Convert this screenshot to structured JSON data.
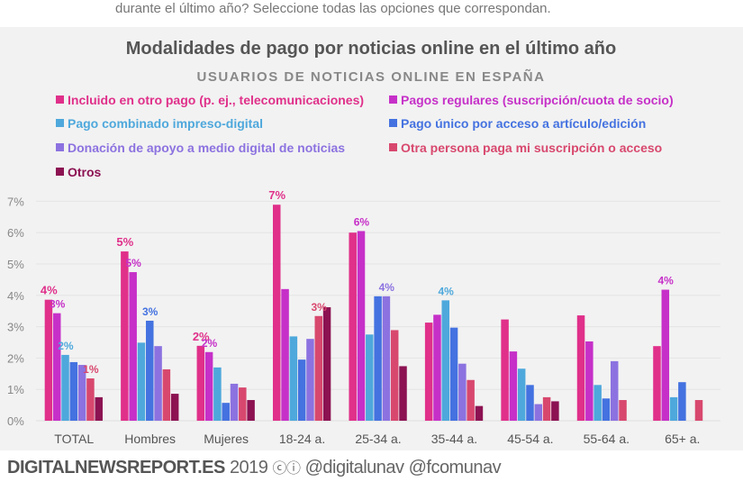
{
  "question_text": "durante el último año? Seleccione todas las opciones que correspondan.",
  "footer": {
    "site": "DIGITALNEWSREPORT.ES",
    "year": "2019",
    "license_icon": "creative-commons-by-icon",
    "handle1": "@digitalunav",
    "handle2": "@fcomunav"
  },
  "chart_data": {
    "type": "bar",
    "title": "Modalidades de pago por noticias online en el último año",
    "subtitle": "USUARIOS DE NOTICIAS ONLINE EN ESPAÑA",
    "xlabel": "",
    "ylabel": "",
    "ylim": [
      0,
      7
    ],
    "yticks": [
      "0%",
      "1%",
      "2%",
      "3%",
      "4%",
      "5%",
      "6%",
      "7%"
    ],
    "grid": true,
    "legend_position": "top",
    "categories": [
      "TOTAL",
      "Hombres",
      "Mujeres",
      "18-24 a.",
      "25-34 a.",
      "35-44 a.",
      "45-54 a.",
      "55-64 a.",
      "65+ a."
    ],
    "series": [
      {
        "name": "Incluido en otro pago (p. ej., telecomunicaciones)",
        "color": "#e0308a",
        "values": [
          3.86,
          5.4,
          2.39,
          6.89,
          6.0,
          3.13,
          3.23,
          3.36,
          2.38
        ]
      },
      {
        "name": "Pagos regulares (suscripción/cuota de socio)",
        "color": "#c630c8",
        "values": [
          3.43,
          4.74,
          2.19,
          4.2,
          6.05,
          3.38,
          2.21,
          2.53,
          4.18
        ]
      },
      {
        "name": "Pago combinado impreso-digital",
        "color": "#4ea8dc",
        "values": [
          2.1,
          2.49,
          1.7,
          2.69,
          2.75,
          3.84,
          1.66,
          1.14,
          0.75
        ]
      },
      {
        "name": "Pago único por acceso a artículo/edición",
        "color": "#4472e0",
        "values": [
          1.87,
          3.19,
          0.57,
          1.95,
          3.97,
          2.97,
          1.14,
          0.71,
          1.23
        ]
      },
      {
        "name": "Donación de apoyo a medio digital de noticias",
        "color": "#8c72e0",
        "values": [
          1.78,
          2.38,
          1.18,
          2.61,
          3.97,
          1.82,
          0.53,
          1.9,
          null
        ]
      },
      {
        "name": "Otra persona paga mi suscripción o acceso",
        "color": "#d8486e",
        "values": [
          1.35,
          1.64,
          1.06,
          3.34,
          2.89,
          1.3,
          0.75,
          0.66,
          0.66
        ]
      },
      {
        "name": "Otros",
        "color": "#8c1252",
        "values": [
          0.75,
          0.86,
          0.66,
          3.62,
          1.74,
          0.47,
          0.62,
          null,
          null
        ]
      }
    ],
    "annotations": [
      {
        "category": 0,
        "series": 0,
        "text": "4%"
      },
      {
        "category": 0,
        "series": 1,
        "text": "3%"
      },
      {
        "category": 0,
        "series": 2,
        "text": "2%"
      },
      {
        "category": 0,
        "series": 5,
        "text": "1%"
      },
      {
        "category": 1,
        "series": 0,
        "text": "5%"
      },
      {
        "category": 1,
        "series": 1,
        "text": "5%"
      },
      {
        "category": 1,
        "series": 3,
        "text": "3%"
      },
      {
        "category": 2,
        "series": 0,
        "text": "2%"
      },
      {
        "category": 2,
        "series": 1,
        "text": "2%"
      },
      {
        "category": 3,
        "series": 0,
        "text": "7%"
      },
      {
        "category": 3,
        "series": 5,
        "text": "3%"
      },
      {
        "category": 4,
        "series": 1,
        "text": "6%"
      },
      {
        "category": 4,
        "series": 4,
        "text": "4%"
      },
      {
        "category": 5,
        "series": 2,
        "text": "4%"
      },
      {
        "category": 8,
        "series": 1,
        "text": "4%"
      }
    ]
  }
}
